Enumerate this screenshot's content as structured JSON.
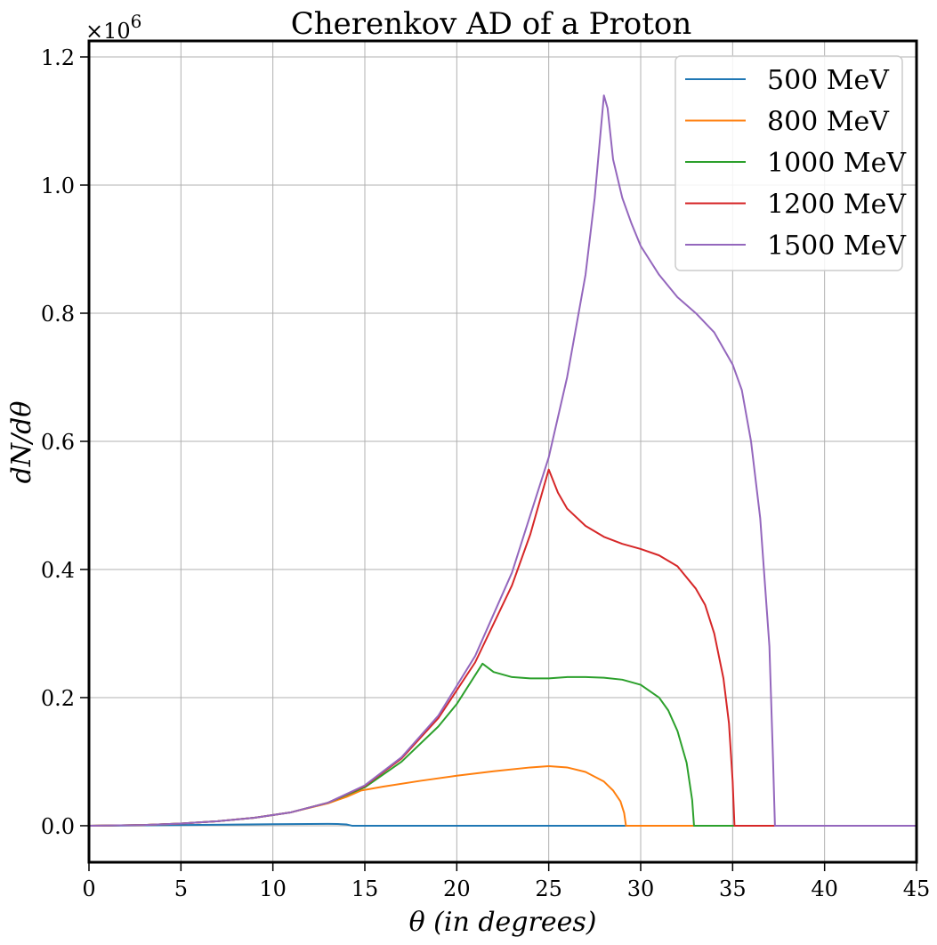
{
  "chart_data": {
    "type": "line",
    "title": "Cherenkov AD of a Proton",
    "xlabel": "θ (in degrees)",
    "ylabel": "dN/dθ",
    "y_multiplier": "×10",
    "y_multiplier_exp": "6",
    "xlim": [
      0,
      45
    ],
    "ylim": [
      -0.057,
      1.225
    ],
    "xticks": [
      0,
      5,
      10,
      15,
      20,
      25,
      30,
      35,
      40,
      45
    ],
    "xtick_labels": [
      "0",
      "5",
      "10",
      "15",
      "20",
      "25",
      "30",
      "35",
      "40",
      "45"
    ],
    "yticks": [
      0.0,
      0.2,
      0.4,
      0.6,
      0.8,
      1.0,
      1.2
    ],
    "ytick_labels": [
      "0.0",
      "0.2",
      "0.4",
      "0.6",
      "0.8",
      "1.0",
      "1.2"
    ],
    "grid": true,
    "legend_position": "top-right",
    "series": [
      {
        "name": "500 MeV",
        "color": "#1f77b4",
        "x": [
          0,
          2,
          4,
          6,
          8,
          10,
          11,
          12,
          13,
          13.5,
          14,
          14.3,
          15,
          20,
          30,
          40,
          45
        ],
        "y": [
          0,
          0.0003,
          0.0008,
          0.0013,
          0.0018,
          0.0023,
          0.0026,
          0.0028,
          0.0029,
          0.0027,
          0.002,
          0.0,
          0,
          0,
          0,
          0,
          0
        ]
      },
      {
        "name": "800 MeV",
        "color": "#ff7f0e",
        "x": [
          0,
          3,
          5,
          7,
          9,
          11,
          13,
          14,
          14.8,
          16,
          18,
          20,
          22,
          24,
          25,
          26,
          27,
          28,
          28.5,
          28.9,
          29.1,
          29.2,
          30,
          35,
          40,
          45
        ],
        "y": [
          0,
          0.0012,
          0.0035,
          0.007,
          0.0125,
          0.021,
          0.035,
          0.045,
          0.055,
          0.061,
          0.07,
          0.078,
          0.085,
          0.091,
          0.093,
          0.091,
          0.084,
          0.069,
          0.055,
          0.038,
          0.02,
          0.0,
          0,
          0,
          0,
          0
        ]
      },
      {
        "name": "1000 MeV",
        "color": "#2ca02c",
        "x": [
          0,
          3,
          5,
          7,
          9,
          11,
          13,
          15,
          17,
          19,
          20,
          21.4,
          22,
          23,
          24,
          25,
          26,
          27,
          28,
          29,
          30,
          31,
          31.5,
          32,
          32.5,
          32.8,
          32.9,
          34,
          40,
          45
        ],
        "y": [
          0,
          0.0012,
          0.0035,
          0.007,
          0.0125,
          0.021,
          0.036,
          0.06,
          0.1,
          0.155,
          0.19,
          0.253,
          0.24,
          0.232,
          0.23,
          0.23,
          0.232,
          0.232,
          0.231,
          0.228,
          0.22,
          0.2,
          0.18,
          0.148,
          0.098,
          0.04,
          0.0,
          0,
          0,
          0
        ]
      },
      {
        "name": "1200 MeV",
        "color": "#d62728",
        "x": [
          0,
          3,
          5,
          7,
          9,
          11,
          13,
          15,
          17,
          19,
          21,
          23,
          24,
          25,
          25.5,
          26,
          27,
          28,
          29,
          30,
          31,
          32,
          33,
          33.5,
          34,
          34.5,
          34.8,
          35,
          35.1,
          36,
          40,
          45
        ],
        "y": [
          0,
          0.0012,
          0.0035,
          0.007,
          0.0125,
          0.021,
          0.036,
          0.062,
          0.105,
          0.168,
          0.255,
          0.375,
          0.455,
          0.556,
          0.52,
          0.495,
          0.468,
          0.451,
          0.44,
          0.432,
          0.422,
          0.405,
          0.37,
          0.345,
          0.3,
          0.23,
          0.16,
          0.07,
          0.0,
          0,
          0,
          0
        ]
      },
      {
        "name": "1500 MeV",
        "color": "#9467bd",
        "x": [
          0,
          3,
          5,
          7,
          9,
          11,
          13,
          15,
          17,
          19,
          21,
          23,
          25,
          26,
          27,
          27.5,
          28,
          28.2,
          28.5,
          29,
          29.5,
          30,
          31,
          32,
          33,
          34,
          35,
          35.5,
          36,
          36.5,
          37,
          37.2,
          37.3,
          38,
          40,
          45
        ],
        "y": [
          0,
          0.0012,
          0.0035,
          0.007,
          0.0125,
          0.021,
          0.036,
          0.063,
          0.107,
          0.172,
          0.265,
          0.395,
          0.575,
          0.7,
          0.86,
          0.98,
          1.14,
          1.12,
          1.04,
          0.98,
          0.94,
          0.905,
          0.86,
          0.825,
          0.8,
          0.77,
          0.72,
          0.68,
          0.6,
          0.48,
          0.28,
          0.1,
          0.0,
          0,
          0,
          0
        ]
      }
    ]
  }
}
